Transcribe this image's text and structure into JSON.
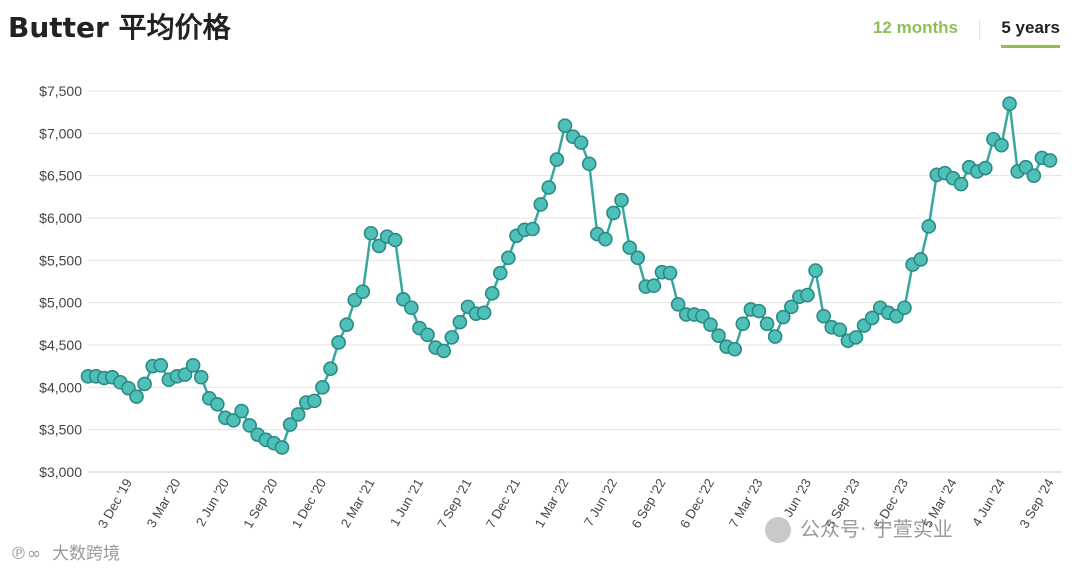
{
  "title": "Butter 平均价格",
  "range_tabs": {
    "months12": "12 months",
    "years5": "5 years",
    "active": "5 years"
  },
  "colors": {
    "line": "#3aa6a0",
    "marker_fill": "#4fc0b8",
    "marker_stroke": "#2a8a85",
    "grid": "#e3e3e3",
    "axis": "#d0d0d0",
    "tab_active": "#8cc152"
  },
  "watermarks": {
    "left": "大数跨境",
    "right": "公众号· 宁萱实业"
  },
  "chart_data": {
    "type": "line",
    "title": "Butter 平均价格",
    "ylim": [
      3000,
      7500
    ],
    "yticks": [
      3000,
      3500,
      4000,
      4500,
      5000,
      5500,
      6000,
      6500,
      7000,
      7500
    ],
    "ytick_labels": [
      "$3,000",
      "$3,500",
      "$4,000",
      "$4,500",
      "$5,000",
      "$5,500",
      "$6,000",
      "$6,500",
      "$7,000",
      "$7,500"
    ],
    "grid": true,
    "legend": "none",
    "x_tick_labels": [
      {
        "index": 5,
        "label": "3 Dec '19"
      },
      {
        "index": 11,
        "label": "3 Mar '20"
      },
      {
        "index": 17,
        "label": "2 Jun '20"
      },
      {
        "index": 23,
        "label": "1 Sep '20"
      },
      {
        "index": 29,
        "label": "1 Dec '20"
      },
      {
        "index": 35,
        "label": "2 Mar '21"
      },
      {
        "index": 41,
        "label": "1 Jun '21"
      },
      {
        "index": 47,
        "label": "7 Sep '21"
      },
      {
        "index": 53,
        "label": "7 Dec '21"
      },
      {
        "index": 59,
        "label": "1 Mar '22"
      },
      {
        "index": 65,
        "label": "7 Jun '22"
      },
      {
        "index": 71,
        "label": "6 Sep '22"
      },
      {
        "index": 77,
        "label": "6 Dec '22"
      },
      {
        "index": 83,
        "label": "7 Mar '23"
      },
      {
        "index": 89,
        "label": "6 Jun '23"
      },
      {
        "index": 95,
        "label": "5 Sep '23"
      },
      {
        "index": 101,
        "label": "5 Dec '23"
      },
      {
        "index": 107,
        "label": "5 Mar '24"
      },
      {
        "index": 113,
        "label": "4 Jun '24"
      },
      {
        "index": 119,
        "label": "3 Sep '24"
      }
    ],
    "series": [
      {
        "values": [
          4130,
          4130,
          4110,
          4120,
          4060,
          3990,
          3890,
          4040,
          4250,
          4260,
          4090,
          4130,
          4150,
          4260,
          4120,
          3870,
          3800,
          3640,
          3610,
          3720,
          3550,
          3440,
          3380,
          3340,
          3290,
          3560,
          3680,
          3820,
          3840,
          4000,
          4220,
          4530,
          4740,
          5030,
          5130,
          5820,
          5670,
          5780,
          5740,
          5040,
          4940,
          4700,
          4620,
          4470,
          4430,
          4590,
          4770,
          4950,
          4870,
          4880,
          5110,
          5350,
          5530,
          5790,
          5860,
          5870,
          6160,
          6360,
          6690,
          7090,
          6960,
          6890,
          6640,
          5810,
          5750,
          6060,
          6210,
          5650,
          5530,
          5190,
          5200,
          5360,
          5350,
          4980,
          4860,
          4860,
          4840,
          4740,
          4610,
          4480,
          4450,
          4750,
          4920,
          4900,
          4750,
          4600,
          4830,
          4950,
          5070,
          5090,
          5380,
          4840,
          4710,
          4680,
          4550,
          4590,
          4730,
          4820,
          4940,
          4880,
          4840,
          4940,
          5450,
          5510,
          5900,
          6510,
          6530,
          6470,
          6400,
          6600,
          6550,
          6590,
          6930,
          6860,
          7350,
          6550,
          6600,
          6500,
          6710,
          6680
        ]
      }
    ]
  }
}
